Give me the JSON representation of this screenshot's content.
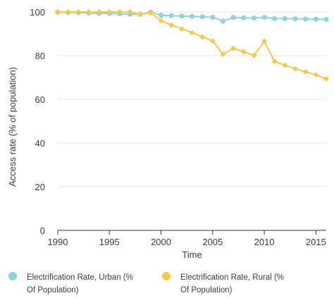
{
  "chart_data": {
    "type": "line",
    "xlabel": "Time",
    "ylabel": "Access rate (% of population)",
    "xlim": [
      1990,
      2016
    ],
    "ylim": [
      0,
      100
    ],
    "x_ticks": [
      1990,
      1995,
      2000,
      2005,
      2010,
      2015
    ],
    "y_ticks": [
      0,
      20,
      40,
      60,
      80,
      100
    ],
    "grid": true,
    "legend_position": "bottom",
    "x": [
      1990,
      1991,
      1992,
      1993,
      1994,
      1995,
      1996,
      1997,
      1998,
      1999,
      2000,
      2001,
      2002,
      2003,
      2004,
      2005,
      2006,
      2007,
      2008,
      2009,
      2010,
      2011,
      2012,
      2013,
      2014,
      2015,
      2016
    ],
    "series": [
      {
        "name": "Electrification Rate, Urban (% Of Population)",
        "legend_lines": [
          "Electrification Rate, Urban (%",
          "Of Population)"
        ],
        "color": "#8dd3e0",
        "marker": "circle",
        "values": [
          99.9,
          99.8,
          99.7,
          99.5,
          99.4,
          99.3,
          99.2,
          99.0,
          98.9,
          99.9,
          98.5,
          98.3,
          98.1,
          98.0,
          97.8,
          97.6,
          95.8,
          97.5,
          97.3,
          97.2,
          97.5,
          97.0,
          97.0,
          96.9,
          96.8,
          96.7,
          96.6
        ]
      },
      {
        "name": "Electrification Rate, Rural (% Of Population)",
        "legend_lines": [
          "Electrification Rate, Rural (%",
          "Of Population)"
        ],
        "color": "#f7c948",
        "marker": "diamond",
        "values": [
          100,
          100,
          100,
          100,
          100,
          100,
          100,
          100,
          99.0,
          99.5,
          96.0,
          94.0,
          92.3,
          90.5,
          88.6,
          86.7,
          80.6,
          83.3,
          81.8,
          80.1,
          86.6,
          77.3,
          75.6,
          74.0,
          72.6,
          71.2,
          69.4
        ]
      }
    ]
  }
}
